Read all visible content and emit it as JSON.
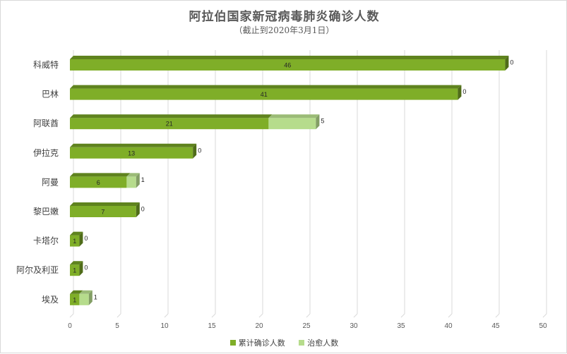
{
  "chart_data": {
    "type": "bar",
    "orientation": "horizontal",
    "stacked": true,
    "style": "3d",
    "title": "阿拉伯国家新冠病毒肺炎确诊人数",
    "subtitle": "（截止到2020年3月1日）",
    "categories": [
      "科威特",
      "巴林",
      "阿联酋",
      "伊拉克",
      "阿曼",
      "黎巴嫩",
      "卡塔尔",
      "阿尔及利亚",
      "埃及"
    ],
    "series": [
      {
        "name": "累计确诊人数",
        "color": "#7fae28",
        "values": [
          46,
          41,
          21,
          13,
          6,
          7,
          1,
          1,
          1
        ]
      },
      {
        "name": "治愈人数",
        "color": "#b6dc8c",
        "values": [
          0,
          0,
          5,
          0,
          1,
          0,
          0,
          0,
          1
        ]
      }
    ],
    "xlim": [
      0,
      50
    ],
    "xticks": [
      "0",
      "5",
      "10",
      "15",
      "20",
      "25",
      "30",
      "35",
      "40",
      "45",
      "50"
    ],
    "grid": true,
    "legend_position": "bottom"
  }
}
